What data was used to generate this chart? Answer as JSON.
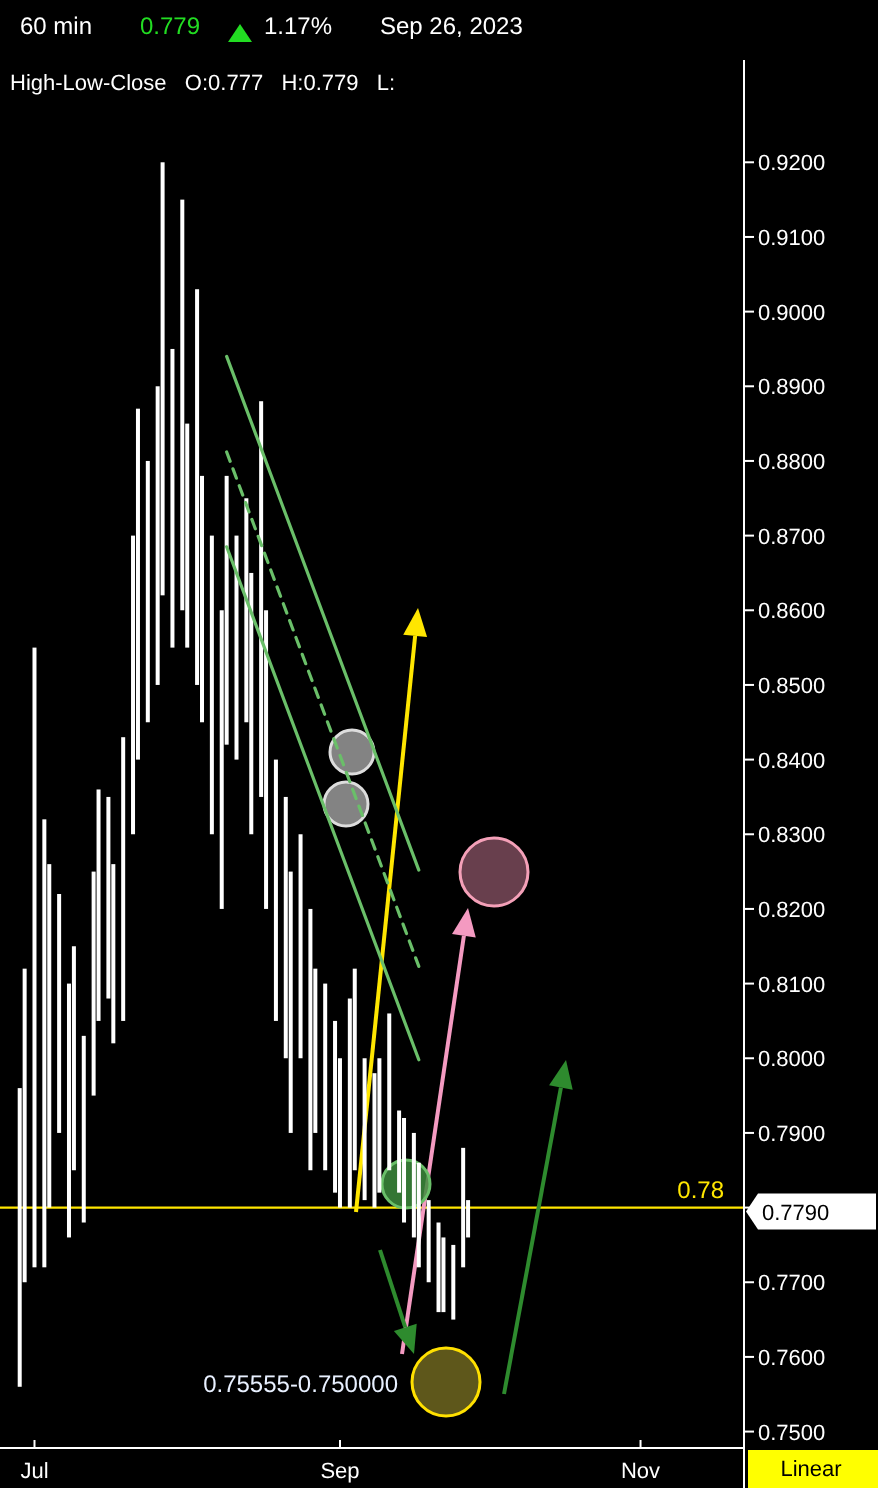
{
  "chart_data": {
    "type": "bar",
    "subtitle": "High-Low-Close   O:0.777   H:0.779   L:",
    "annotations": [
      "60 min",
      "0.779",
      "1.17%",
      "Sep 26, 2023",
      "0.7790",
      "0.75555-0.750000",
      "Linear"
    ],
    "xlim": [
      "2023-06-24",
      "2023-11-22"
    ],
    "xticks": [
      {
        "value": "2023-07-01",
        "label": "Jul"
      },
      {
        "value": "2023-09-01",
        "label": "Sep"
      },
      {
        "value": "2023-11-01",
        "label": "Nov"
      }
    ],
    "ylim": [
      0.7478,
      0.9337
    ],
    "yticks": [
      {
        "value": 0.75,
        "label": "0.7500"
      },
      {
        "value": 0.76,
        "label": "0.7600"
      },
      {
        "value": 0.77,
        "label": "0.7700"
      },
      {
        "value": 0.78,
        "label": null
      },
      {
        "value": 0.79,
        "label": "0.7900"
      },
      {
        "value": 0.8,
        "label": "0.8000"
      },
      {
        "value": 0.81,
        "label": "0.8100"
      },
      {
        "value": 0.82,
        "label": "0.8200"
      },
      {
        "value": 0.83,
        "label": "0.8300"
      },
      {
        "value": 0.84,
        "label": "0.8400"
      },
      {
        "value": 0.85,
        "label": "0.8500"
      },
      {
        "value": 0.86,
        "label": "0.8600"
      },
      {
        "value": 0.87,
        "label": "0.8700"
      },
      {
        "value": 0.88,
        "label": "0.8800"
      },
      {
        "value": 0.89,
        "label": "0.8900"
      },
      {
        "value": 0.9,
        "label": "0.9000"
      },
      {
        "value": 0.91,
        "label": "0.9100"
      },
      {
        "value": 0.92,
        "label": "0.9200"
      }
    ],
    "grid": false,
    "ref_lines": [
      {
        "axis": "y",
        "value": 0.78,
        "label": "0.78",
        "color": "#ffe600"
      }
    ],
    "series": [
      {
        "color": "#ffffff",
        "x": [
          "2023-06-28",
          "2023-06-29",
          "2023-07-01",
          "2023-07-03",
          "2023-07-04",
          "2023-07-06",
          "2023-07-08",
          "2023-07-09",
          "2023-07-11",
          "2023-07-13",
          "2023-07-14",
          "2023-07-16",
          "2023-07-17",
          "2023-07-19",
          "2023-07-21",
          "2023-07-22",
          "2023-07-24",
          "2023-07-26",
          "2023-07-27",
          "2023-07-29",
          "2023-07-31",
          "2023-08-01",
          "2023-08-03",
          "2023-08-04",
          "2023-08-06",
          "2023-08-08",
          "2023-08-09",
          "2023-08-11",
          "2023-08-13",
          "2023-08-14",
          "2023-08-16",
          "2023-08-17",
          "2023-08-19",
          "2023-08-21",
          "2023-08-22",
          "2023-08-24",
          "2023-08-26",
          "2023-08-27",
          "2023-08-29",
          "2023-08-31",
          "2023-09-01",
          "2023-09-03",
          "2023-09-04",
          "2023-09-06",
          "2023-09-08",
          "2023-09-09",
          "2023-09-11",
          "2023-09-13",
          "2023-09-14",
          "2023-09-16",
          "2023-09-17",
          "2023-09-19",
          "2023-09-21",
          "2023-09-22",
          "2023-09-24",
          "2023-09-26",
          "2023-09-27"
        ],
        "base": [
          0.756,
          0.77,
          0.772,
          0.772,
          0.78,
          0.79,
          0.776,
          0.785,
          0.778,
          0.795,
          0.805,
          0.808,
          0.802,
          0.805,
          0.83,
          0.84,
          0.845,
          0.85,
          0.862,
          0.855,
          0.86,
          0.855,
          0.85,
          0.845,
          0.83,
          0.82,
          0.842,
          0.84,
          0.845,
          0.83,
          0.835,
          0.82,
          0.805,
          0.8,
          0.79,
          0.8,
          0.785,
          0.79,
          0.785,
          0.782,
          0.78,
          0.78,
          0.785,
          0.781,
          0.78,
          0.782,
          0.785,
          0.782,
          0.778,
          0.776,
          0.772,
          0.77,
          0.766,
          0.766,
          0.765,
          0.772,
          0.776
        ],
        "values": [
          0.04,
          0.042,
          0.083,
          0.06,
          0.046,
          0.032,
          0.034,
          0.03,
          0.025,
          0.03,
          0.031,
          0.027,
          0.024,
          0.038,
          0.04,
          0.047,
          0.035,
          0.04,
          0.058,
          0.04,
          0.055,
          0.03,
          0.053,
          0.033,
          0.04,
          0.04,
          0.036,
          0.03,
          0.03,
          0.035,
          0.053,
          0.04,
          0.035,
          0.035,
          0.035,
          0.03,
          0.035,
          0.022,
          0.025,
          0.023,
          0.02,
          0.028,
          0.027,
          0.019,
          0.018,
          0.018,
          0.021,
          0.011,
          0.014,
          0.014,
          0.014,
          0.011,
          0.012,
          0.01,
          0.01,
          0.016,
          0.005
        ]
      },
      {
        "type": "line",
        "color": "#6abf69",
        "x": [
          "2023-08-09",
          "2023-09-17"
        ],
        "values": [
          0.894,
          0.8252
        ]
      },
      {
        "type": "line",
        "color": "#6abf69",
        "x": [
          "2023-08-09",
          "2023-09-17"
        ],
        "values": [
          0.8812,
          0.8123
        ],
        "line_style": "dashed"
      },
      {
        "type": "line",
        "color": "#6abf69",
        "x": [
          "2023-08-09",
          "2023-09-17"
        ],
        "values": [
          0.8685,
          0.7998
        ]
      }
    ]
  }
}
